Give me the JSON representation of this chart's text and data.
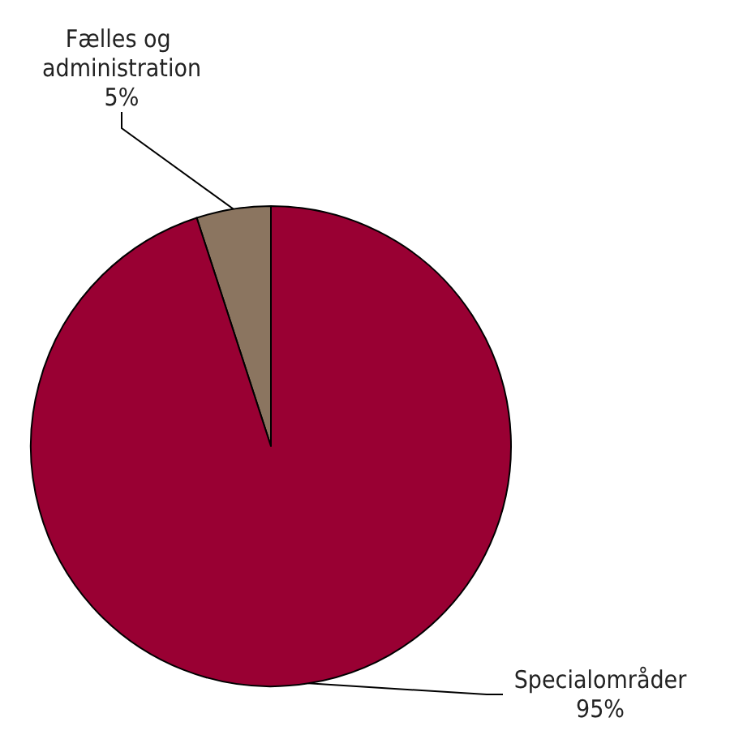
{
  "chart_data": {
    "type": "pie",
    "categories": [
      "Fælles og administration",
      "Specialområder"
    ],
    "values": [
      5,
      95
    ],
    "colors": [
      "#8b7560",
      "#990033"
    ],
    "value_labels": [
      "5%",
      "95%"
    ],
    "legend": false
  }
}
